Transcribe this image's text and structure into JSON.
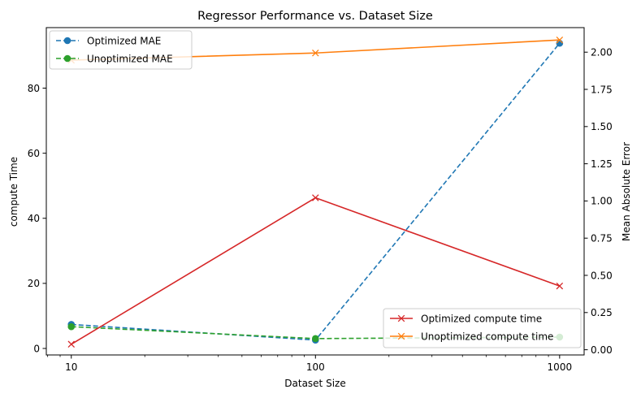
{
  "chart_data": {
    "type": "line",
    "title": "Regressor Performance vs. Dataset Size",
    "xlabel": "Dataset Size",
    "xscale": "log",
    "x": [
      10,
      100,
      1000
    ],
    "xticks": [
      "10",
      "100",
      "1000"
    ],
    "left_axis": {
      "label": "compute Time",
      "ylim": [
        -2,
        98.6
      ],
      "ticks": [
        0,
        20,
        40,
        60,
        80
      ]
    },
    "right_axis": {
      "label": "Mean Absolute Error",
      "ylim": [
        -0.035,
        2.165
      ],
      "ticks": [
        "0.00",
        "0.25",
        "0.50",
        "0.75",
        "1.00",
        "1.25",
        "1.50",
        "1.75",
        "2.00"
      ]
    },
    "series": [
      {
        "name": "Optimized MAE",
        "axis": "right",
        "color": "#1f77b4",
        "linestyle": "dashed",
        "marker": "circle",
        "values": [
          0.17,
          0.065,
          2.06
        ]
      },
      {
        "name": "Unoptimized MAE",
        "axis": "right",
        "color": "#2ca02c",
        "linestyle": "dashed",
        "marker": "circle",
        "values": [
          0.155,
          0.075,
          0.085
        ]
      },
      {
        "name": "Optimized compute time",
        "axis": "left",
        "color": "#d62728",
        "linestyle": "solid",
        "marker": "x",
        "values": [
          1.3,
          46.3,
          19.2
        ]
      },
      {
        "name": "Unoptimized compute time",
        "axis": "left",
        "color": "#ff7f0e",
        "linestyle": "solid",
        "marker": "x",
        "values": [
          88.6,
          90.8,
          94.8
        ]
      }
    ],
    "legends": [
      {
        "location": "upper-left",
        "series": [
          "Optimized MAE",
          "Unoptimized MAE"
        ]
      },
      {
        "location": "lower-right",
        "series": [
          "Optimized compute time",
          "Unoptimized compute time"
        ]
      }
    ],
    "grid": false
  }
}
